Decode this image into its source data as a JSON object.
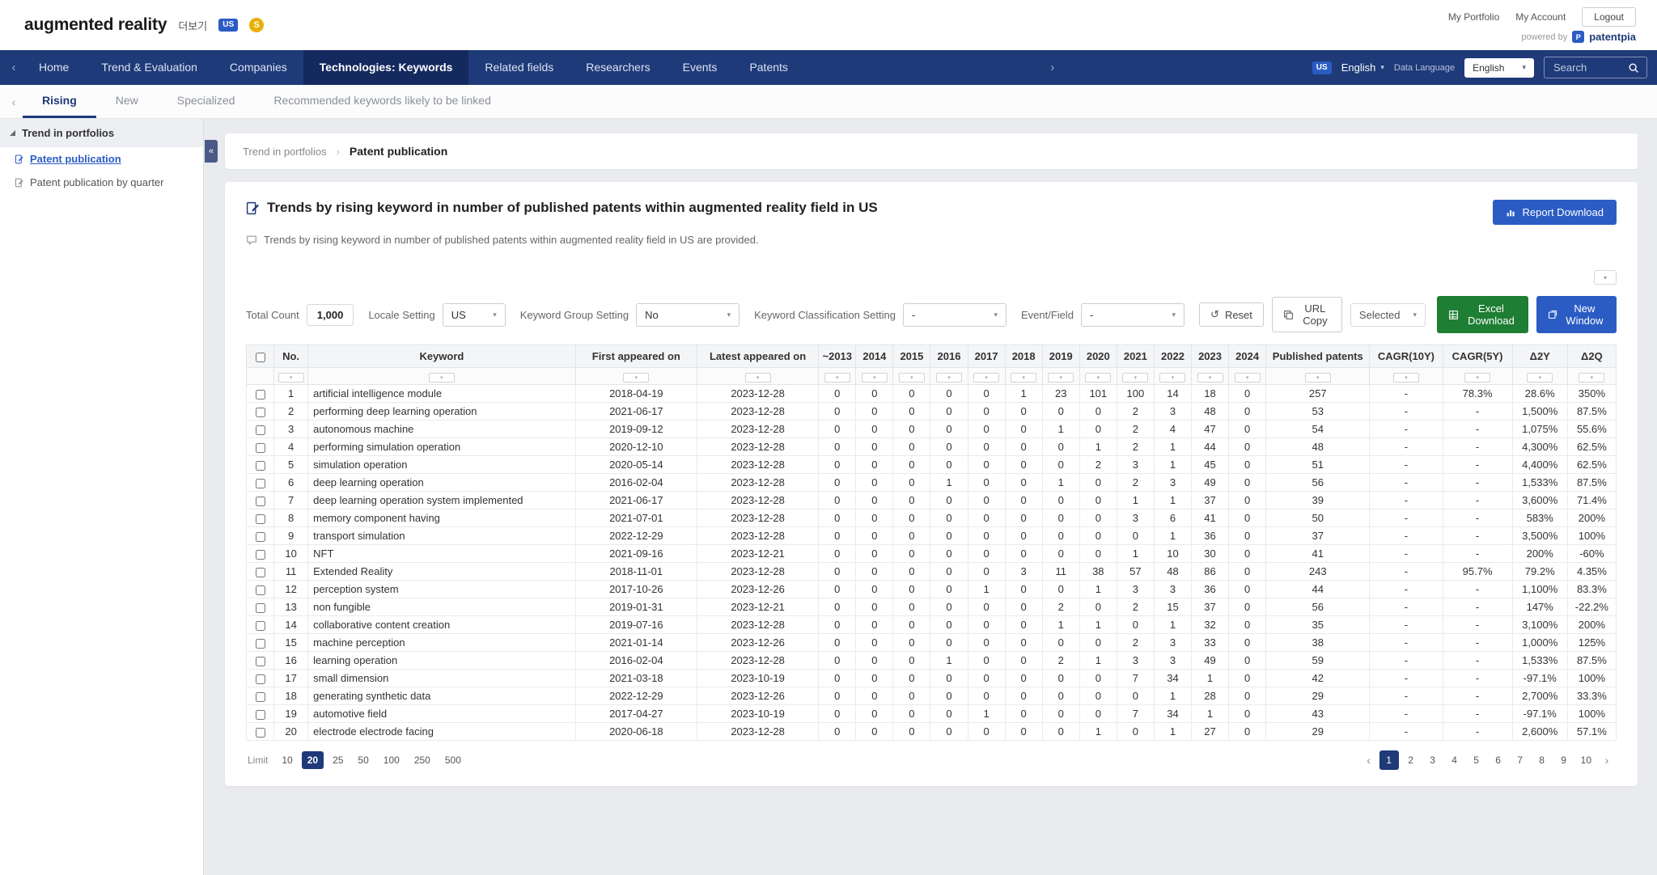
{
  "icons": {
    "caret_down": "▾",
    "chevron_left": "‹",
    "chevron_right": "›",
    "collapse_left": "«",
    "reset": "↺",
    "breadcrumb_sep": "›"
  },
  "header": {
    "logo": "augmented reality",
    "more_label": "더보기",
    "badge_us": "US",
    "badge_s": "S",
    "links": [
      "My Portfolio",
      "My Account"
    ],
    "logout": "Logout",
    "powered_by": "powered by",
    "brand_initial": "P",
    "brand": "patentpia"
  },
  "nav": {
    "items": [
      "Home",
      "Trend & Evaluation",
      "Companies",
      "Technologies: Keywords",
      "Related fields",
      "Researchers",
      "Events",
      "Patents"
    ],
    "active": "Technologies: Keywords",
    "locale_badge": "US",
    "locale_label": "English",
    "data_language_label": "Data Language",
    "data_language_value": "English",
    "search_placeholder": "Search"
  },
  "tabs": {
    "items": [
      "Rising",
      "New",
      "Specialized",
      "Recommended keywords likely to be linked"
    ],
    "active": "Rising"
  },
  "sidebar": {
    "title": "Trend in portfolios",
    "items": [
      "Patent publication",
      "Patent publication by quarter"
    ],
    "active": "Patent publication"
  },
  "breadcrumb": {
    "parent": "Trend in portfolios",
    "current": "Patent publication"
  },
  "main": {
    "title": "Trends by rising keyword in number of published patents within augmented reality field in US",
    "subtitle": "Trends by rising keyword in number of published patents within augmented reality field in US are provided.",
    "report_download": "Report Download",
    "controls": {
      "total_count_label": "Total Count",
      "total_count": "1,000",
      "locale_label": "Locale Setting",
      "locale_value": "US",
      "group_label": "Keyword Group Setting",
      "group_value": "No",
      "classification_label": "Keyword Classification Setting",
      "classification_value": "-",
      "event_label": "Event/Field",
      "event_value": "-",
      "reset": "Reset",
      "url_copy": "URL Copy",
      "selected": "Selected",
      "excel": "Excel Download",
      "new_window": "New Window"
    }
  },
  "table": {
    "columns": [
      "No.",
      "Keyword",
      "First appeared on",
      "Latest appeared on",
      "~2013",
      "2014",
      "2015",
      "2016",
      "2017",
      "2018",
      "2019",
      "2020",
      "2021",
      "2022",
      "2023",
      "2024",
      "Published patents",
      "CAGR(10Y)",
      "CAGR(5Y)",
      "Δ2Y",
      "Δ2Q"
    ],
    "rows": [
      {
        "no": 1,
        "keyword": "artificial intelligence module",
        "first": "2018-04-19",
        "latest": "2023-12-28",
        "years": [
          0,
          0,
          0,
          0,
          0,
          1,
          23,
          101,
          100,
          14,
          18,
          0
        ],
        "published": "257",
        "cagr10": "-",
        "cagr5": "78.3%",
        "d2y": "28.6%",
        "d2q": "350%"
      },
      {
        "no": 2,
        "keyword": "performing deep learning operation",
        "first": "2021-06-17",
        "latest": "2023-12-28",
        "years": [
          0,
          0,
          0,
          0,
          0,
          0,
          0,
          0,
          2,
          3,
          48,
          0
        ],
        "published": "53",
        "cagr10": "-",
        "cagr5": "-",
        "d2y": "1,500%",
        "d2q": "87.5%"
      },
      {
        "no": 3,
        "keyword": "autonomous machine",
        "first": "2019-09-12",
        "latest": "2023-12-28",
        "years": [
          0,
          0,
          0,
          0,
          0,
          0,
          1,
          0,
          2,
          4,
          47,
          0
        ],
        "published": "54",
        "cagr10": "-",
        "cagr5": "-",
        "d2y": "1,075%",
        "d2q": "55.6%"
      },
      {
        "no": 4,
        "keyword": "performing simulation operation",
        "first": "2020-12-10",
        "latest": "2023-12-28",
        "years": [
          0,
          0,
          0,
          0,
          0,
          0,
          0,
          1,
          2,
          1,
          44,
          0
        ],
        "published": "48",
        "cagr10": "-",
        "cagr5": "-",
        "d2y": "4,300%",
        "d2q": "62.5%"
      },
      {
        "no": 5,
        "keyword": "simulation operation",
        "first": "2020-05-14",
        "latest": "2023-12-28",
        "years": [
          0,
          0,
          0,
          0,
          0,
          0,
          0,
          2,
          3,
          1,
          45,
          0
        ],
        "published": "51",
        "cagr10": "-",
        "cagr5": "-",
        "d2y": "4,400%",
        "d2q": "62.5%"
      },
      {
        "no": 6,
        "keyword": "deep learning operation",
        "first": "2016-02-04",
        "latest": "2023-12-28",
        "years": [
          0,
          0,
          0,
          1,
          0,
          0,
          1,
          0,
          2,
          3,
          49,
          0
        ],
        "published": "56",
        "cagr10": "-",
        "cagr5": "-",
        "d2y": "1,533%",
        "d2q": "87.5%"
      },
      {
        "no": 7,
        "keyword": "deep learning operation system implemented",
        "first": "2021-06-17",
        "latest": "2023-12-28",
        "years": [
          0,
          0,
          0,
          0,
          0,
          0,
          0,
          0,
          1,
          1,
          37,
          0
        ],
        "published": "39",
        "cagr10": "-",
        "cagr5": "-",
        "d2y": "3,600%",
        "d2q": "71.4%"
      },
      {
        "no": 8,
        "keyword": "memory component having",
        "first": "2021-07-01",
        "latest": "2023-12-28",
        "years": [
          0,
          0,
          0,
          0,
          0,
          0,
          0,
          0,
          3,
          6,
          41,
          0
        ],
        "published": "50",
        "cagr10": "-",
        "cagr5": "-",
        "d2y": "583%",
        "d2q": "200%"
      },
      {
        "no": 9,
        "keyword": "transport simulation",
        "first": "2022-12-29",
        "latest": "2023-12-28",
        "years": [
          0,
          0,
          0,
          0,
          0,
          0,
          0,
          0,
          0,
          1,
          36,
          0
        ],
        "published": "37",
        "cagr10": "-",
        "cagr5": "-",
        "d2y": "3,500%",
        "d2q": "100%"
      },
      {
        "no": 10,
        "keyword": "NFT",
        "first": "2021-09-16",
        "latest": "2023-12-21",
        "years": [
          0,
          0,
          0,
          0,
          0,
          0,
          0,
          0,
          1,
          10,
          30,
          0
        ],
        "published": "41",
        "cagr10": "-",
        "cagr5": "-",
        "d2y": "200%",
        "d2q": "-60%"
      },
      {
        "no": 11,
        "keyword": "Extended Reality",
        "first": "2018-11-01",
        "latest": "2023-12-28",
        "years": [
          0,
          0,
          0,
          0,
          0,
          3,
          11,
          38,
          57,
          48,
          86,
          0
        ],
        "published": "243",
        "cagr10": "-",
        "cagr5": "95.7%",
        "d2y": "79.2%",
        "d2q": "4.35%"
      },
      {
        "no": 12,
        "keyword": "perception system",
        "first": "2017-10-26",
        "latest": "2023-12-26",
        "years": [
          0,
          0,
          0,
          0,
          1,
          0,
          0,
          1,
          3,
          3,
          36,
          0
        ],
        "published": "44",
        "cagr10": "-",
        "cagr5": "-",
        "d2y": "1,100%",
        "d2q": "83.3%"
      },
      {
        "no": 13,
        "keyword": "non fungible",
        "first": "2019-01-31",
        "latest": "2023-12-21",
        "years": [
          0,
          0,
          0,
          0,
          0,
          0,
          2,
          0,
          2,
          15,
          37,
          0
        ],
        "published": "56",
        "cagr10": "-",
        "cagr5": "-",
        "d2y": "147%",
        "d2q": "-22.2%"
      },
      {
        "no": 14,
        "keyword": "collaborative content creation",
        "first": "2019-07-16",
        "latest": "2023-12-28",
        "years": [
          0,
          0,
          0,
          0,
          0,
          0,
          1,
          1,
          0,
          1,
          32,
          0
        ],
        "published": "35",
        "cagr10": "-",
        "cagr5": "-",
        "d2y": "3,100%",
        "d2q": "200%"
      },
      {
        "no": 15,
        "keyword": "machine perception",
        "first": "2021-01-14",
        "latest": "2023-12-26",
        "years": [
          0,
          0,
          0,
          0,
          0,
          0,
          0,
          0,
          2,
          3,
          33,
          0
        ],
        "published": "38",
        "cagr10": "-",
        "cagr5": "-",
        "d2y": "1,000%",
        "d2q": "125%"
      },
      {
        "no": 16,
        "keyword": "learning operation",
        "first": "2016-02-04",
        "latest": "2023-12-28",
        "years": [
          0,
          0,
          0,
          1,
          0,
          0,
          2,
          1,
          3,
          3,
          49,
          0
        ],
        "published": "59",
        "cagr10": "-",
        "cagr5": "-",
        "d2y": "1,533%",
        "d2q": "87.5%"
      },
      {
        "no": 17,
        "keyword": "small dimension",
        "first": "2021-03-18",
        "latest": "2023-10-19",
        "years": [
          0,
          0,
          0,
          0,
          0,
          0,
          0,
          0,
          7,
          34,
          1,
          0
        ],
        "published": "42",
        "cagr10": "-",
        "cagr5": "-",
        "d2y": "-97.1%",
        "d2q": "100%"
      },
      {
        "no": 18,
        "keyword": "generating synthetic data",
        "first": "2022-12-29",
        "latest": "2023-12-26",
        "years": [
          0,
          0,
          0,
          0,
          0,
          0,
          0,
          0,
          0,
          1,
          28,
          0
        ],
        "published": "29",
        "cagr10": "-",
        "cagr5": "-",
        "d2y": "2,700%",
        "d2q": "33.3%"
      },
      {
        "no": 19,
        "keyword": "automotive field",
        "first": "2017-04-27",
        "latest": "2023-10-19",
        "years": [
          0,
          0,
          0,
          0,
          1,
          0,
          0,
          0,
          7,
          34,
          1,
          0
        ],
        "published": "43",
        "cagr10": "-",
        "cagr5": "-",
        "d2y": "-97.1%",
        "d2q": "100%"
      },
      {
        "no": 20,
        "keyword": "electrode electrode facing",
        "first": "2020-06-18",
        "latest": "2023-12-28",
        "years": [
          0,
          0,
          0,
          0,
          0,
          0,
          0,
          1,
          0,
          1,
          27,
          0
        ],
        "published": "29",
        "cagr10": "-",
        "cagr5": "-",
        "d2y": "2,600%",
        "d2q": "57.1%"
      }
    ]
  },
  "footer": {
    "limit_label": "Limit",
    "limits": [
      "10",
      "20",
      "25",
      "50",
      "100",
      "250",
      "500"
    ],
    "active_limit": "20",
    "pages": [
      "1",
      "2",
      "3",
      "4",
      "5",
      "6",
      "7",
      "8",
      "9",
      "10"
    ],
    "active_page": "1"
  }
}
